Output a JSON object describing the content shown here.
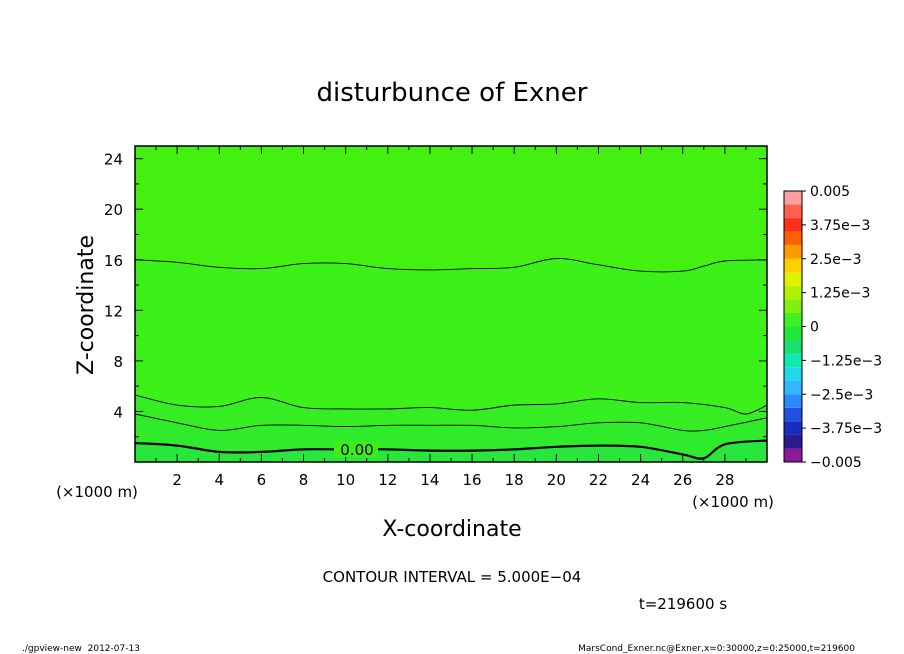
{
  "chart_data": {
    "type": "heatmap",
    "title": "disturbunce of Exner",
    "xlabel": "X-coordinate",
    "ylabel": "Z-coordinate",
    "x_unit_left": "(×1000 m)",
    "x_unit_right": "(×1000 m)",
    "xlim": [
      0,
      30
    ],
    "ylim": [
      0,
      25
    ],
    "x_ticks": [
      2,
      4,
      6,
      8,
      10,
      12,
      14,
      16,
      18,
      20,
      22,
      24,
      26,
      28
    ],
    "y_ticks": [
      4,
      8,
      12,
      16,
      20,
      24
    ],
    "colorbar": {
      "levels": [
        -0.005,
        -0.0045,
        -0.004,
        -0.0035,
        -0.003,
        -0.0025,
        -0.002,
        -0.0015,
        -0.001,
        -0.0005,
        0,
        0.0005,
        0.001,
        0.0015,
        0.002,
        0.0025,
        0.003,
        0.0035,
        0.004,
        0.0045,
        0.005
      ],
      "colors": [
        "#8a1a9a",
        "#2a1a8a",
        "#1a2ac0",
        "#2050e0",
        "#2a8aff",
        "#30b8ff",
        "#20d8e8",
        "#10e8b0",
        "#18e070",
        "#20e838",
        "#40f020",
        "#80f010",
        "#b0f000",
        "#e0f000",
        "#ffd000",
        "#ff9a00",
        "#ff6000",
        "#ff3018",
        "#ff6050",
        "#ffa0a0"
      ],
      "tick_labels": [
        "0.005",
        "3.75e−3",
        "2.5e−3",
        "1.25e−3",
        "0",
        "−1.25e−3",
        "−2.5e−3",
        "−3.75e−3",
        "−0.005"
      ]
    },
    "contour_label": "0.00",
    "contours": [
      {
        "x": [
          0,
          2,
          4,
          6,
          8,
          10,
          12,
          14,
          16,
          18,
          20,
          22,
          24,
          26,
          27,
          28,
          30
        ],
        "y": [
          16,
          15.8,
          15.4,
          15.3,
          15.7,
          15.7,
          15.3,
          15.2,
          15.3,
          15.4,
          16.1,
          15.6,
          15.1,
          15.1,
          15.5,
          15.9,
          16
        ]
      },
      {
        "x": [
          0,
          2,
          4,
          6,
          8,
          10,
          12,
          14,
          16,
          18,
          20,
          22,
          24,
          26,
          28,
          29,
          30
        ],
        "y": [
          5.3,
          4.5,
          4.4,
          5.1,
          4.3,
          4.2,
          4.2,
          4.3,
          4.1,
          4.5,
          4.6,
          5,
          4.7,
          4.7,
          4.3,
          3.8,
          4.5
        ]
      },
      {
        "x": [
          0,
          2,
          4,
          6,
          8,
          10,
          12,
          14,
          16,
          18,
          20,
          22,
          24,
          26,
          27,
          28,
          30
        ],
        "y": [
          3.8,
          3.1,
          2.5,
          2.9,
          2.9,
          2.8,
          2.9,
          2.9,
          2.9,
          2.7,
          2.8,
          3.1,
          3.1,
          2.5,
          2.5,
          2.8,
          3.5
        ]
      },
      {
        "x": [
          0,
          2,
          4,
          6,
          8,
          10,
          12,
          14,
          16,
          18,
          20,
          22,
          24,
          26,
          27,
          28,
          30
        ],
        "y": [
          1.5,
          1.3,
          0.8,
          0.8,
          1,
          1,
          1,
          0.9,
          0.9,
          1,
          1.2,
          1.3,
          1.2,
          0.6,
          0.3,
          1.4,
          1.7
        ]
      }
    ],
    "grid": false,
    "legend": "colorbar-right"
  },
  "contour_interval": "CONTOUR INTERVAL = 5.000E−04",
  "time_label": "t=219600 s",
  "footer_left": "./gpview-new  2012-07-13",
  "footer_right": "MarsCond_Exner.nc@Exner,x=0:30000,z=0:25000,t=219600"
}
